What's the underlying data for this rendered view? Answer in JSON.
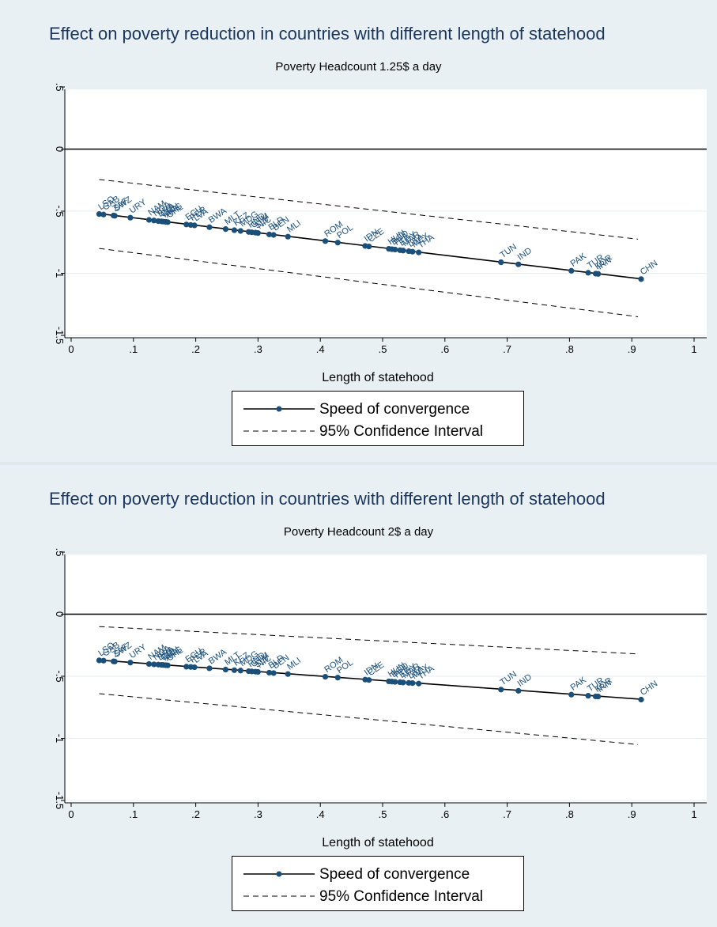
{
  "chart_data": [
    {
      "type": "line",
      "title": "Effect on poverty reduction in countries with different length of statehood",
      "subtitle": "Poverty Headcount 1.25$ a day",
      "xlabel": "Length of statehood",
      "ylabel": "",
      "xlim": [
        0,
        1
      ],
      "ylim": [
        -1.5,
        0.5
      ],
      "x_ticks": [
        "0",
        ".1",
        ".2",
        ".3",
        ".4",
        ".5",
        ".6",
        ".7",
        ".8",
        ".9",
        "1"
      ],
      "y_ticks": [
        ".5",
        "0",
        "-.5",
        "-1",
        "-1.5"
      ],
      "grid": true,
      "legend_position": "bottom",
      "reference_line_y": 0,
      "series": [
        {
          "name": "Speed of convergence",
          "style": "solid-with-markers",
          "line": {
            "x": [
              0.045,
              0.915
            ],
            "y": [
              -0.52,
              -1.045
            ]
          }
        },
        {
          "name": "95% Confidence Interval",
          "style": "dashed",
          "upper": {
            "x": [
              0.045,
              0.91
            ],
            "y": [
              -0.245,
              -0.725
            ]
          },
          "lower": {
            "x": [
              0.045,
              0.91
            ],
            "y": [
              -0.8,
              -1.35
            ]
          }
        }
      ],
      "points": [
        {
          "label": "LSO",
          "x": 0.045,
          "y": -0.523
        },
        {
          "label": "GAB",
          "x": 0.052,
          "y": -0.527
        },
        {
          "label": "ZAF",
          "x": 0.068,
          "y": -0.535
        },
        {
          "label": "SWZ",
          "x": 0.07,
          "y": -0.537
        },
        {
          "label": "URY",
          "x": 0.095,
          "y": -0.552
        },
        {
          "label": "NAM",
          "x": 0.125,
          "y": -0.57
        },
        {
          "label": "NGA",
          "x": 0.133,
          "y": -0.575
        },
        {
          "label": "BRA",
          "x": 0.14,
          "y": -0.58
        },
        {
          "label": "COL",
          "x": 0.145,
          "y": -0.582
        },
        {
          "label": "KEN",
          "x": 0.148,
          "y": -0.584
        },
        {
          "label": "ARG",
          "x": 0.152,
          "y": -0.586
        },
        {
          "label": "CHL",
          "x": 0.155,
          "y": -0.588
        },
        {
          "label": "ECU",
          "x": 0.185,
          "y": -0.607
        },
        {
          "label": "PER",
          "x": 0.192,
          "y": -0.611
        },
        {
          "label": "LVA",
          "x": 0.198,
          "y": -0.614
        },
        {
          "label": "BWA",
          "x": 0.222,
          "y": -0.629
        },
        {
          "label": "MLT",
          "x": 0.248,
          "y": -0.644
        },
        {
          "label": "KEZ",
          "x": 0.262,
          "y": -0.653
        },
        {
          "label": "MDG",
          "x": 0.272,
          "y": -0.659
        },
        {
          "label": "HND",
          "x": 0.285,
          "y": -0.667
        },
        {
          "label": "GTM",
          "x": 0.29,
          "y": -0.67
        },
        {
          "label": "SLV",
          "x": 0.296,
          "y": -0.673
        },
        {
          "label": "NIC",
          "x": 0.3,
          "y": -0.676
        },
        {
          "label": "BLR",
          "x": 0.318,
          "y": -0.687
        },
        {
          "label": "BEN",
          "x": 0.325,
          "y": -0.691
        },
        {
          "label": "MLI",
          "x": 0.348,
          "y": -0.705
        },
        {
          "label": "ROM",
          "x": 0.408,
          "y": -0.741
        },
        {
          "label": "POL",
          "x": 0.428,
          "y": -0.753
        },
        {
          "label": "IDN",
          "x": 0.472,
          "y": -0.78
        },
        {
          "label": "CZE",
          "x": 0.478,
          "y": -0.784
        },
        {
          "label": "HUN",
          "x": 0.51,
          "y": -0.803
        },
        {
          "label": "BGD",
          "x": 0.515,
          "y": -0.806
        },
        {
          "label": "PHL",
          "x": 0.52,
          "y": -0.809
        },
        {
          "label": "EGY",
          "x": 0.528,
          "y": -0.814
        },
        {
          "label": "MAR",
          "x": 0.533,
          "y": -0.817
        },
        {
          "label": "LKA",
          "x": 0.542,
          "y": -0.822
        },
        {
          "label": "MEX",
          "x": 0.548,
          "y": -0.826
        },
        {
          "label": "THA",
          "x": 0.558,
          "y": -0.832
        },
        {
          "label": "TUN",
          "x": 0.69,
          "y": -0.911
        },
        {
          "label": "IND",
          "x": 0.718,
          "y": -0.928
        },
        {
          "label": "PAK",
          "x": 0.803,
          "y": -0.98
        },
        {
          "label": "TUR",
          "x": 0.83,
          "y": -0.996
        },
        {
          "label": "KOR",
          "x": 0.842,
          "y": -1.003
        },
        {
          "label": "IRN",
          "x": 0.846,
          "y": -1.005
        },
        {
          "label": "CHN",
          "x": 0.915,
          "y": -1.047
        }
      ]
    },
    {
      "type": "line",
      "title": "Effect on poverty reduction in countries with different length of statehood",
      "subtitle": "Poverty Headcount 2$ a day",
      "xlabel": "Length of statehood",
      "ylabel": "",
      "xlim": [
        0,
        1
      ],
      "ylim": [
        -1.5,
        0.5
      ],
      "x_ticks": [
        "0",
        ".1",
        ".2",
        ".3",
        ".4",
        ".5",
        ".6",
        ".7",
        ".8",
        ".9",
        "1"
      ],
      "y_ticks": [
        ".5",
        "0",
        "-.5",
        "-1",
        "-1.5"
      ],
      "grid": true,
      "legend_position": "bottom",
      "reference_line_y": 0,
      "series": [
        {
          "name": "Speed of convergence",
          "style": "solid-with-markers",
          "line": {
            "x": [
              0.045,
              0.915
            ],
            "y": [
              -0.37,
              -0.685
            ]
          }
        },
        {
          "name": "95% Confidence Interval",
          "style": "dashed",
          "upper": {
            "x": [
              0.045,
              0.91
            ],
            "y": [
              -0.1,
              -0.32
            ]
          },
          "lower": {
            "x": [
              0.045,
              0.91
            ],
            "y": [
              -0.64,
              -1.05
            ]
          }
        }
      ],
      "points": [
        {
          "label": "LSO",
          "x": 0.045,
          "y": -0.372
        },
        {
          "label": "GAB",
          "x": 0.052,
          "y": -0.374
        },
        {
          "label": "ZAF",
          "x": 0.068,
          "y": -0.38
        },
        {
          "label": "SWZ",
          "x": 0.07,
          "y": -0.381
        },
        {
          "label": "URY",
          "x": 0.095,
          "y": -0.39
        },
        {
          "label": "NAM",
          "x": 0.125,
          "y": -0.401
        },
        {
          "label": "NGA",
          "x": 0.133,
          "y": -0.404
        },
        {
          "label": "BRA",
          "x": 0.14,
          "y": -0.406
        },
        {
          "label": "COL",
          "x": 0.145,
          "y": -0.408
        },
        {
          "label": "KEN",
          "x": 0.148,
          "y": -0.409
        },
        {
          "label": "ARG",
          "x": 0.152,
          "y": -0.411
        },
        {
          "label": "CHL",
          "x": 0.155,
          "y": -0.412
        },
        {
          "label": "ECU",
          "x": 0.185,
          "y": -0.423
        },
        {
          "label": "PER",
          "x": 0.192,
          "y": -0.425
        },
        {
          "label": "LVA",
          "x": 0.198,
          "y": -0.427
        },
        {
          "label": "BWA",
          "x": 0.222,
          "y": -0.436
        },
        {
          "label": "MLT",
          "x": 0.248,
          "y": -0.446
        },
        {
          "label": "KEZ",
          "x": 0.262,
          "y": -0.451
        },
        {
          "label": "MDG",
          "x": 0.272,
          "y": -0.454
        },
        {
          "label": "HND",
          "x": 0.285,
          "y": -0.459
        },
        {
          "label": "GTM",
          "x": 0.29,
          "y": -0.461
        },
        {
          "label": "SLV",
          "x": 0.296,
          "y": -0.463
        },
        {
          "label": "NIC",
          "x": 0.3,
          "y": -0.465
        },
        {
          "label": "BLR",
          "x": 0.318,
          "y": -0.471
        },
        {
          "label": "BEN",
          "x": 0.325,
          "y": -0.474
        },
        {
          "label": "MLI",
          "x": 0.348,
          "y": -0.482
        },
        {
          "label": "ROM",
          "x": 0.408,
          "y": -0.504
        },
        {
          "label": "POL",
          "x": 0.428,
          "y": -0.511
        },
        {
          "label": "IDN",
          "x": 0.472,
          "y": -0.527
        },
        {
          "label": "CZE",
          "x": 0.478,
          "y": -0.53
        },
        {
          "label": "HUN",
          "x": 0.51,
          "y": -0.541
        },
        {
          "label": "BGD",
          "x": 0.515,
          "y": -0.543
        },
        {
          "label": "PHL",
          "x": 0.52,
          "y": -0.545
        },
        {
          "label": "EGY",
          "x": 0.528,
          "y": -0.548
        },
        {
          "label": "MAR",
          "x": 0.533,
          "y": -0.55
        },
        {
          "label": "LKA",
          "x": 0.542,
          "y": -0.553
        },
        {
          "label": "MEX",
          "x": 0.548,
          "y": -0.555
        },
        {
          "label": "THA",
          "x": 0.558,
          "y": -0.559
        },
        {
          "label": "TUN",
          "x": 0.69,
          "y": -0.607
        },
        {
          "label": "IND",
          "x": 0.718,
          "y": -0.617
        },
        {
          "label": "PAK",
          "x": 0.803,
          "y": -0.648
        },
        {
          "label": "TUR",
          "x": 0.83,
          "y": -0.657
        },
        {
          "label": "KOR",
          "x": 0.842,
          "y": -0.662
        },
        {
          "label": "IRN",
          "x": 0.846,
          "y": -0.663
        },
        {
          "label": "CHN",
          "x": 0.915,
          "y": -0.688
        }
      ]
    }
  ],
  "colors": {
    "background": "#e9f0f3",
    "plot_area": "#ffffff",
    "title": "#1b365d",
    "marker": "#1a4f7a",
    "point_label": "#1a4f7a",
    "grid": "#e6eef2"
  }
}
